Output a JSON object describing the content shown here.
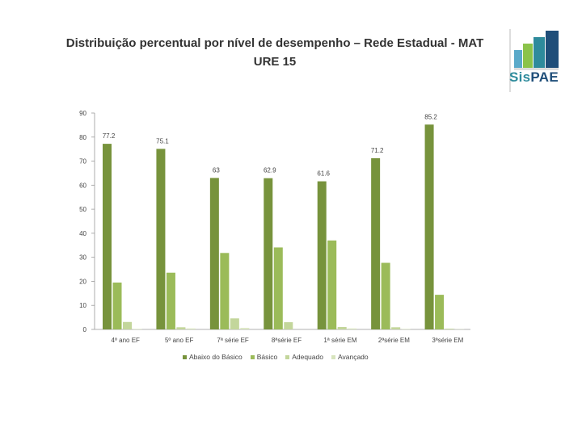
{
  "header": {
    "title_line1": "Distribuição percentual por nível de desempenho – Rede Estadual - MAT",
    "title_line2": "URE 15"
  },
  "logo": {
    "brand_part1": "Sis",
    "brand_part2": "PAE",
    "colors": [
      "#2e8b9c",
      "#5aa9c9",
      "#1f4e79",
      "#8bc34a"
    ]
  },
  "chart_data": {
    "type": "bar",
    "title": "Distribuição percentual por nível de desempenho – Rede Estadual - MAT URE 15",
    "categories": [
      "4º ano EF",
      "5º ano EF",
      "7ª série EF",
      "8ªsérie EF",
      "1ª série EM",
      "2ªsérie EM",
      "3ªsérie EM"
    ],
    "series": [
      {
        "name": "Abaixo do Básico",
        "color": "#77933c",
        "values": [
          77.2,
          75.1,
          63,
          62.9,
          61.6,
          71.2,
          85.2
        ],
        "labels": [
          "77.2",
          "75.1",
          "63",
          "62.9",
          "61.6",
          "71.2",
          "85.2"
        ]
      },
      {
        "name": "Básico",
        "color": "#9bbb59",
        "values": [
          19.5,
          23.6,
          31.8,
          34.1,
          37.0,
          27.7,
          14.4
        ]
      },
      {
        "name": "Adequado",
        "color": "#c3d69b",
        "values": [
          3.1,
          0.9,
          4.6,
          3.0,
          1.0,
          0.9,
          0.3
        ]
      },
      {
        "name": "Avançado",
        "color": "#d7e4bd",
        "values": [
          0.2,
          0.4,
          0.6,
          0.0,
          0.4,
          0.2,
          0.1
        ]
      }
    ],
    "yticks": [
      "0",
      "10",
      "20",
      "30",
      "40",
      "50",
      "60",
      "70",
      "80",
      "90"
    ],
    "ylim": [
      0,
      90
    ],
    "xlabel": "",
    "ylabel": "",
    "legend_position": "bottom"
  }
}
